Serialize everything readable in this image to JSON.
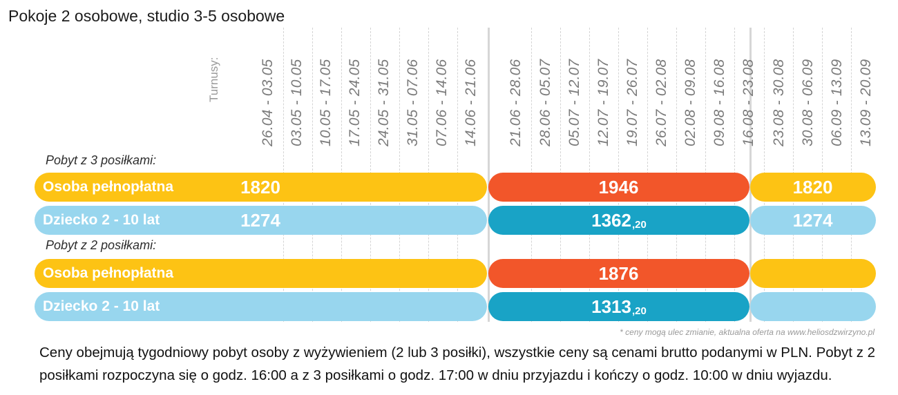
{
  "page": {
    "title": "Pokoje 2 osobowe, studio 3-5 osobowe"
  },
  "header": {
    "turnusy_label": "Turnusy:",
    "periods": [
      "26.04 - 03.05",
      "03.05 - 10.05",
      "10.05 - 17.05",
      "17.05 - 24.05",
      "24.05 - 31.05",
      "31.05 - 07.06",
      "07.06 - 14.06",
      "14.06 - 21.06",
      "21.06 - 28.06",
      "28.06 - 05.07",
      "05.07 - 12.07",
      "12.07 - 19.07",
      "19.07 - 26.07",
      "26.07 - 02.08",
      "02.08 - 09.08",
      "09.08 - 16.08",
      "16.08 - 23.08",
      "23.08 - 30.08",
      "30.08 - 06.09",
      "06.09 - 13.09",
      "13.09 - 20.09"
    ]
  },
  "sections": [
    {
      "label": "Pobyt z 3 posiłkami:",
      "rows": [
        {
          "label": "Osoba pełnopłatna",
          "kind": "adult",
          "cells": [
            {
              "int": "1820",
              "dec": ""
            },
            {
              "int": "1946",
              "dec": ""
            },
            {
              "int": "1820",
              "dec": ""
            }
          ]
        },
        {
          "label": "Dziecko 2 - 10 lat",
          "kind": "child",
          "cells": [
            {
              "int": "1274",
              "dec": ""
            },
            {
              "int": "1362",
              "dec": ",20"
            },
            {
              "int": "1274",
              "dec": ""
            }
          ]
        }
      ]
    },
    {
      "label": "Pobyt z 2 posiłkami:",
      "rows": [
        {
          "label": "Osoba pełnopłatna",
          "kind": "adult",
          "cells": [
            {
              "int": "",
              "dec": ""
            },
            {
              "int": "1876",
              "dec": ""
            },
            {
              "int": "",
              "dec": ""
            }
          ]
        },
        {
          "label": "Dziecko 2 - 10 lat",
          "kind": "child",
          "cells": [
            {
              "int": "",
              "dec": ""
            },
            {
              "int": "1313",
              "dec": ",20"
            },
            {
              "int": "",
              "dec": ""
            }
          ]
        }
      ]
    }
  ],
  "colors": {
    "adult_low": "#FDC314",
    "adult_high": "#F2562A",
    "child_low": "#98D6EE",
    "child_high": "#19A3C6"
  },
  "note": "* ceny mogą ulec zmianie, aktualna oferta na www.heliosdzwirzyno.pl",
  "footer": "Ceny obejmują tygodniowy pobyt osoby z wyżywieniem (2 lub 3 posiłki), wszystkie ceny są cenami brutto podanymi w PLN. Pobyt z 2 posiłkami rozpoczyna się o godz. 16:00  a z 3 posiłkami o godz. 17:00 w dniu przyjazdu i kończy o godz. 10:00 w dniu wyjazdu."
}
